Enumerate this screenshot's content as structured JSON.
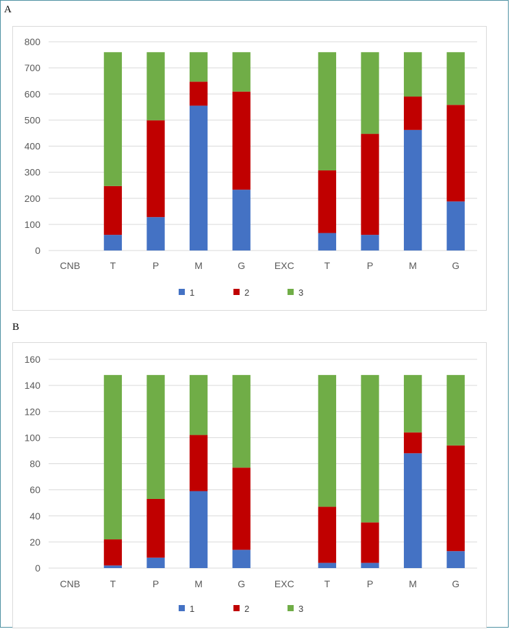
{
  "panels": [
    {
      "label": "A"
    },
    {
      "label": "B"
    }
  ],
  "chart_data": [
    {
      "type": "bar",
      "stacked": true,
      "title": "",
      "xlabel": "",
      "ylabel": "",
      "categories": [
        "CNB",
        "T",
        "P",
        "M",
        "G",
        "EXC",
        "T",
        "P",
        "M",
        "G"
      ],
      "ylim": [
        0,
        800
      ],
      "yticks": [
        0,
        100,
        200,
        300,
        400,
        500,
        600,
        700,
        800
      ],
      "grid": true,
      "legend_position": "bottom",
      "series": [
        {
          "name": "1",
          "color": "#4472c4",
          "values": [
            0,
            60,
            128,
            555,
            233,
            0,
            67,
            60,
            462,
            188
          ]
        },
        {
          "name": "2",
          "color": "#c00000",
          "values": [
            0,
            187,
            371,
            92,
            376,
            0,
            240,
            387,
            128,
            370
          ]
        },
        {
          "name": "3",
          "color": "#70ad47",
          "values": [
            0,
            513,
            261,
            113,
            151,
            0,
            453,
            313,
            170,
            202
          ]
        }
      ]
    },
    {
      "type": "bar",
      "stacked": true,
      "title": "",
      "xlabel": "",
      "ylabel": "",
      "categories": [
        "CNB",
        "T",
        "P",
        "M",
        "G",
        "EXC",
        "T",
        "P",
        "M",
        "G"
      ],
      "ylim": [
        0,
        160
      ],
      "yticks": [
        0,
        20,
        40,
        60,
        80,
        100,
        120,
        140,
        160
      ],
      "grid": true,
      "legend_position": "bottom",
      "series": [
        {
          "name": "1",
          "color": "#4472c4",
          "values": [
            0,
            2,
            8,
            59,
            14,
            0,
            4,
            4,
            88,
            13
          ]
        },
        {
          "name": "2",
          "color": "#c00000",
          "values": [
            0,
            20,
            45,
            43,
            63,
            0,
            43,
            31,
            16,
            81
          ]
        },
        {
          "name": "3",
          "color": "#70ad47",
          "values": [
            0,
            126,
            95,
            46,
            71,
            0,
            101,
            113,
            44,
            54
          ]
        }
      ]
    }
  ]
}
